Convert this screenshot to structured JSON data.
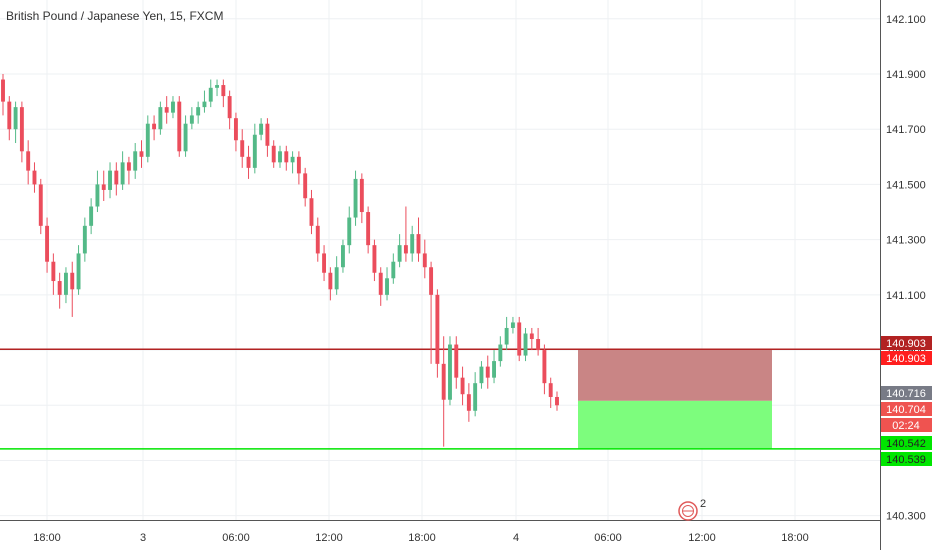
{
  "chart_data": {
    "type": "candlestick",
    "title": "British Pound / Japanese Yen, 15, FXCM",
    "x_ticks": [
      "18:00",
      "3",
      "06:00",
      "12:00",
      "18:00",
      "4",
      "06:00",
      "12:00",
      "18:00"
    ],
    "y_ticks": [
      "142.100",
      "141.900",
      "141.700",
      "141.500",
      "141.300",
      "141.100",
      "140.900",
      "140.700",
      "140.500",
      "140.300"
    ],
    "ylim": [
      140.23,
      142.15
    ],
    "grid": true,
    "colors": {
      "up": "#53b987",
      "down": "#eb4d5c",
      "grid": "#eef0f3",
      "axis": "#555555"
    },
    "candles": [
      [
        141.88,
        141.8,
        141.9,
        141.75
      ],
      [
        141.8,
        141.7,
        141.82,
        141.66
      ],
      [
        141.7,
        141.78,
        141.8,
        141.65
      ],
      [
        141.78,
        141.62,
        141.8,
        141.58
      ],
      [
        141.62,
        141.55,
        141.66,
        141.5
      ],
      [
        141.55,
        141.5,
        141.58,
        141.47
      ],
      [
        141.5,
        141.35,
        141.52,
        141.32
      ],
      [
        141.35,
        141.22,
        141.38,
        141.18
      ],
      [
        141.22,
        141.15,
        141.25,
        141.1
      ],
      [
        141.15,
        141.1,
        141.18,
        141.05
      ],
      [
        141.1,
        141.18,
        141.2,
        141.07
      ],
      [
        141.18,
        141.12,
        141.22,
        141.02
      ],
      [
        141.12,
        141.25,
        141.28,
        141.1
      ],
      [
        141.25,
        141.35,
        141.38,
        141.22
      ],
      [
        141.35,
        141.42,
        141.45,
        141.32
      ],
      [
        141.42,
        141.5,
        141.55,
        141.4
      ],
      [
        141.5,
        141.48,
        141.55,
        141.44
      ],
      [
        141.48,
        141.55,
        141.58,
        141.45
      ],
      [
        141.55,
        141.5,
        141.58,
        141.46
      ],
      [
        141.5,
        141.58,
        141.62,
        141.48
      ],
      [
        141.58,
        141.55,
        141.6,
        141.5
      ],
      [
        141.55,
        141.62,
        141.65,
        141.52
      ],
      [
        141.62,
        141.6,
        141.66,
        141.56
      ],
      [
        141.6,
        141.72,
        141.75,
        141.58
      ],
      [
        141.72,
        141.7,
        141.75,
        141.66
      ],
      [
        141.7,
        141.78,
        141.8,
        141.68
      ],
      [
        141.78,
        141.76,
        141.82,
        141.72
      ],
      [
        141.76,
        141.8,
        141.82,
        141.74
      ],
      [
        141.8,
        141.62,
        141.82,
        141.6
      ],
      [
        141.62,
        141.72,
        141.75,
        141.6
      ],
      [
        141.72,
        141.75,
        141.78,
        141.7
      ],
      [
        141.75,
        141.78,
        141.8,
        141.72
      ],
      [
        141.78,
        141.8,
        141.84,
        141.76
      ],
      [
        141.8,
        141.85,
        141.88,
        141.78
      ],
      [
        141.85,
        141.86,
        141.88,
        141.82
      ],
      [
        141.86,
        141.82,
        141.88,
        141.78
      ],
      [
        141.82,
        141.74,
        141.84,
        141.7
      ],
      [
        141.74,
        141.66,
        141.76,
        141.62
      ],
      [
        141.66,
        141.6,
        141.7,
        141.56
      ],
      [
        141.6,
        141.56,
        141.64,
        141.52
      ],
      [
        141.56,
        141.68,
        141.72,
        141.54
      ],
      [
        141.68,
        141.72,
        141.74,
        141.66
      ],
      [
        141.72,
        141.64,
        141.74,
        141.6
      ],
      [
        141.64,
        141.58,
        141.66,
        141.56
      ],
      [
        141.58,
        141.62,
        141.64,
        141.56
      ],
      [
        141.62,
        141.58,
        141.64,
        141.55
      ],
      [
        141.58,
        141.6,
        141.62,
        141.54
      ],
      [
        141.6,
        141.54,
        141.62,
        141.5
      ],
      [
        141.54,
        141.45,
        141.56,
        141.42
      ],
      [
        141.45,
        141.35,
        141.48,
        141.32
      ],
      [
        141.35,
        141.25,
        141.38,
        141.22
      ],
      [
        141.25,
        141.18,
        141.28,
        141.15
      ],
      [
        141.18,
        141.12,
        141.2,
        141.08
      ],
      [
        141.12,
        141.2,
        141.24,
        141.1
      ],
      [
        141.2,
        141.28,
        141.3,
        141.18
      ],
      [
        141.28,
        141.38,
        141.42,
        141.25
      ],
      [
        141.38,
        141.52,
        141.55,
        141.35
      ],
      [
        141.52,
        141.4,
        141.54,
        141.36
      ],
      [
        141.4,
        141.28,
        141.42,
        141.25
      ],
      [
        141.28,
        141.18,
        141.3,
        141.15
      ],
      [
        141.18,
        141.1,
        141.2,
        141.06
      ],
      [
        141.1,
        141.16,
        141.2,
        141.08
      ],
      [
        141.16,
        141.22,
        141.25,
        141.14
      ],
      [
        141.22,
        141.28,
        141.32,
        141.2
      ],
      [
        141.28,
        141.25,
        141.42,
        141.22
      ],
      [
        141.25,
        141.32,
        141.35,
        141.22
      ],
      [
        141.32,
        141.25,
        141.38,
        141.22
      ],
      [
        141.25,
        141.2,
        141.3,
        141.16
      ],
      [
        141.2,
        141.1,
        141.22,
        140.85
      ],
      [
        141.1,
        140.85,
        141.12,
        140.8
      ],
      [
        140.85,
        140.72,
        140.95,
        140.55
      ],
      [
        140.72,
        140.92,
        140.95,
        140.7
      ],
      [
        140.92,
        140.8,
        140.95,
        140.76
      ],
      [
        140.8,
        140.74,
        140.84,
        140.7
      ],
      [
        140.74,
        140.68,
        140.78,
        140.64
      ],
      [
        140.68,
        140.78,
        140.82,
        140.66
      ],
      [
        140.78,
        140.84,
        140.86,
        140.76
      ],
      [
        140.84,
        140.8,
        140.88,
        140.76
      ],
      [
        140.8,
        140.86,
        140.9,
        140.78
      ],
      [
        140.86,
        140.92,
        140.95,
        140.84
      ],
      [
        140.92,
        140.98,
        141.02,
        140.9
      ],
      [
        140.98,
        141.0,
        141.02,
        140.96
      ],
      [
        141.0,
        140.88,
        141.02,
        140.86
      ],
      [
        140.88,
        140.96,
        140.98,
        140.86
      ],
      [
        140.96,
        140.94,
        140.98,
        140.9
      ],
      [
        140.94,
        140.9,
        140.98,
        140.88
      ],
      [
        140.9,
        140.78,
        140.92,
        140.74
      ],
      [
        140.78,
        140.73,
        140.8,
        140.69
      ],
      [
        140.73,
        140.7,
        140.75,
        140.68
      ]
    ],
    "levels": [
      {
        "price": 140.903,
        "label": "140.903",
        "color": "#b22222"
      },
      {
        "price": 140.542,
        "label": "140.542",
        "color": "#00e600"
      }
    ],
    "price_badges": [
      {
        "label": "140.903",
        "bg": "#b22222",
        "fg": "#ffffff"
      },
      {
        "label": "140.903",
        "bg": "#ff1e1e",
        "fg": "#ffffff"
      },
      {
        "label": "140.716",
        "bg": "#787b86",
        "fg": "#ffffff"
      },
      {
        "label": "140.704",
        "bg": "#ef5350",
        "fg": "#ffffff"
      },
      {
        "label": "02:24",
        "bg": "#ef5350",
        "fg": "#ffffff"
      },
      {
        "label": "140.542",
        "bg": "#00e600",
        "fg": "#222222"
      },
      {
        "label": "140.539",
        "bg": "#00e600",
        "fg": "#222222"
      }
    ],
    "position_box": {
      "entry": 140.716,
      "stop": 140.903,
      "target": 140.542,
      "loss_color": "#c98585",
      "profit_color": "#7dfd7d"
    },
    "event_marker": {
      "count": "2"
    }
  }
}
